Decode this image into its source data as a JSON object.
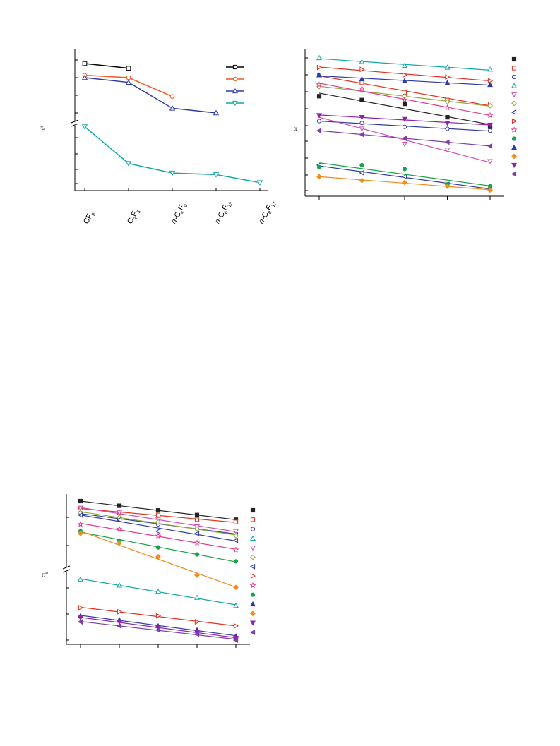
{
  "chart_data": [
    {
      "id": "panel-a",
      "type": "line",
      "ylabel": "π*",
      "ylabel_style": "rotated",
      "broken_axis": true,
      "grid": false,
      "legend_position": "top-right",
      "legend_text_visible": false,
      "categories": [
        {
          "pre": "",
          "main": "CF",
          "sub": "3",
          "mid": "",
          "sub2": ""
        },
        {
          "pre": "",
          "main": "C",
          "sub": "2",
          "mid": "F",
          "sub2": "5"
        },
        {
          "pre": "n-",
          "main": "C",
          "sub": "4",
          "mid": "F",
          "sub2": "9"
        },
        {
          "pre": "n-",
          "main": "C",
          "sub": "6",
          "mid": "F",
          "sub2": "13"
        },
        {
          "pre": "n-",
          "main": "C",
          "sub": "8",
          "mid": "F",
          "sub2": "17"
        }
      ],
      "series": [
        {
          "marker": "square-open",
          "color": "#000000",
          "values": [
            0.88,
            0.86,
            null,
            null,
            null
          ]
        },
        {
          "marker": "circle-open",
          "color": "#ee5a24",
          "values": [
            0.83,
            0.82,
            0.74,
            null,
            null
          ]
        },
        {
          "marker": "triangle-up-open",
          "color": "#2e3aa6",
          "values": [
            0.82,
            0.8,
            0.69,
            0.67,
            null
          ]
        },
        {
          "marker": "triangle-down-open",
          "color": "#12a8a5",
          "values": [
            0.62,
            0.39,
            0.33,
            0.32,
            0.27
          ]
        }
      ]
    },
    {
      "id": "panel-b",
      "type": "scatter",
      "ylabel": "α",
      "grid": false,
      "legend_position": "right",
      "legend_text_visible": false,
      "x_ticks": 5,
      "series": [
        {
          "marker": "square-filled",
          "color": "#222222",
          "values": [
            0.8,
            0.78,
            0.76,
            0.69,
            0.64
          ]
        },
        {
          "marker": "square-open",
          "color": "#e0301e",
          "values": [
            0.91,
            0.87,
            0.82,
            0.78,
            0.76
          ]
        },
        {
          "marker": "circle-open",
          "color": "#2e3aa6",
          "values": [
            0.67,
            0.66,
            0.64,
            0.63,
            0.62
          ]
        },
        {
          "marker": "triangle-up-open",
          "color": "#12a8a5",
          "values": [
            1.0,
            0.98,
            0.96,
            0.95,
            0.94
          ]
        },
        {
          "marker": "triangle-down-open",
          "color": "#d14db5",
          "values": [
            0.7,
            0.63,
            0.55,
            0.52,
            0.46
          ]
        },
        {
          "marker": "diamond-open",
          "color": "#8fa83a",
          "values": [
            0.85,
            0.83,
            0.8,
            0.77,
            0.75
          ]
        },
        {
          "marker": "triangle-left-open",
          "color": "#2e3aa6",
          "values": [
            0.44,
            0.4,
            0.38,
            0.34,
            0.32
          ]
        },
        {
          "marker": "triangle-right-open",
          "color": "#e0301e",
          "values": [
            0.95,
            0.94,
            0.91,
            0.9,
            0.88
          ]
        },
        {
          "marker": "star-open",
          "color": "#e8368a",
          "values": [
            0.86,
            0.84,
            0.78,
            0.74,
            0.7
          ]
        },
        {
          "marker": "circle-filled",
          "color": "#16a34a",
          "values": [
            0.43,
            0.44,
            0.42,
            0.34,
            0.33
          ]
        },
        {
          "marker": "triangle-up-filled",
          "color": "#2e3aa6",
          "values": [
            0.91,
            0.89,
            0.88,
            0.87,
            0.86
          ]
        },
        {
          "marker": "diamond-filled",
          "color": "#f28c1e",
          "values": [
            0.38,
            0.36,
            0.35,
            0.33,
            0.31
          ]
        },
        {
          "marker": "triangle-down-filled",
          "color": "#8e24aa",
          "values": [
            0.7,
            0.69,
            0.68,
            0.66,
            0.65
          ]
        },
        {
          "marker": "triangle-left-filled",
          "color": "#7b3fa8",
          "values": [
            0.62,
            0.6,
            0.58,
            0.56,
            0.54
          ]
        }
      ]
    },
    {
      "id": "panel-c",
      "type": "scatter",
      "ylabel": "π*",
      "broken_axis": true,
      "grid": false,
      "legend_position": "right",
      "legend_text_visible": false,
      "x_ticks": 5,
      "series": [
        {
          "marker": "square-filled",
          "color": "#222222",
          "values": [
            0.98,
            0.96,
            0.94,
            0.92,
            0.9
          ]
        },
        {
          "marker": "square-open",
          "color": "#e0301e",
          "values": [
            0.95,
            0.93,
            0.92,
            0.9,
            0.89
          ]
        },
        {
          "marker": "circle-open",
          "color": "#2e3aa6",
          "values": [
            0.93,
            0.9,
            0.88,
            0.86,
            0.84
          ]
        },
        {
          "marker": "triangle-up-open",
          "color": "#12a8a5",
          "values": [
            0.66,
            0.63,
            0.6,
            0.57,
            0.53
          ]
        },
        {
          "marker": "triangle-down-open",
          "color": "#d14db5",
          "values": [
            0.95,
            0.93,
            0.9,
            0.87,
            0.85
          ]
        },
        {
          "marker": "diamond-open",
          "color": "#8fa83a",
          "values": [
            0.93,
            0.91,
            0.89,
            0.86,
            0.83
          ]
        },
        {
          "marker": "triangle-left-open",
          "color": "#2e3aa6",
          "values": [
            0.92,
            0.9,
            0.85,
            0.84,
            0.81
          ]
        },
        {
          "marker": "triangle-right-open",
          "color": "#e0301e",
          "values": [
            0.52,
            0.5,
            0.48,
            0.45,
            0.43
          ]
        },
        {
          "marker": "star-open",
          "color": "#e8368a",
          "values": [
            0.88,
            0.86,
            0.83,
            0.8,
            0.77
          ]
        },
        {
          "marker": "circle-filled",
          "color": "#16a34a",
          "values": [
            0.85,
            0.81,
            0.78,
            0.75,
            0.72
          ]
        },
        {
          "marker": "triangle-up-filled",
          "color": "#2e3aa6",
          "values": [
            0.48,
            0.46,
            0.43,
            0.41,
            0.38
          ]
        },
        {
          "marker": "diamond-filled",
          "color": "#f28c1e",
          "values": [
            0.84,
            0.8,
            0.74,
            0.68,
            0.62
          ]
        },
        {
          "marker": "triangle-down-filled",
          "color": "#8e24aa",
          "values": [
            0.47,
            0.45,
            0.42,
            0.4,
            0.37
          ]
        },
        {
          "marker": "triangle-left-filled",
          "color": "#7b3fa8",
          "values": [
            0.45,
            0.43,
            0.41,
            0.39,
            0.36
          ]
        }
      ]
    }
  ]
}
